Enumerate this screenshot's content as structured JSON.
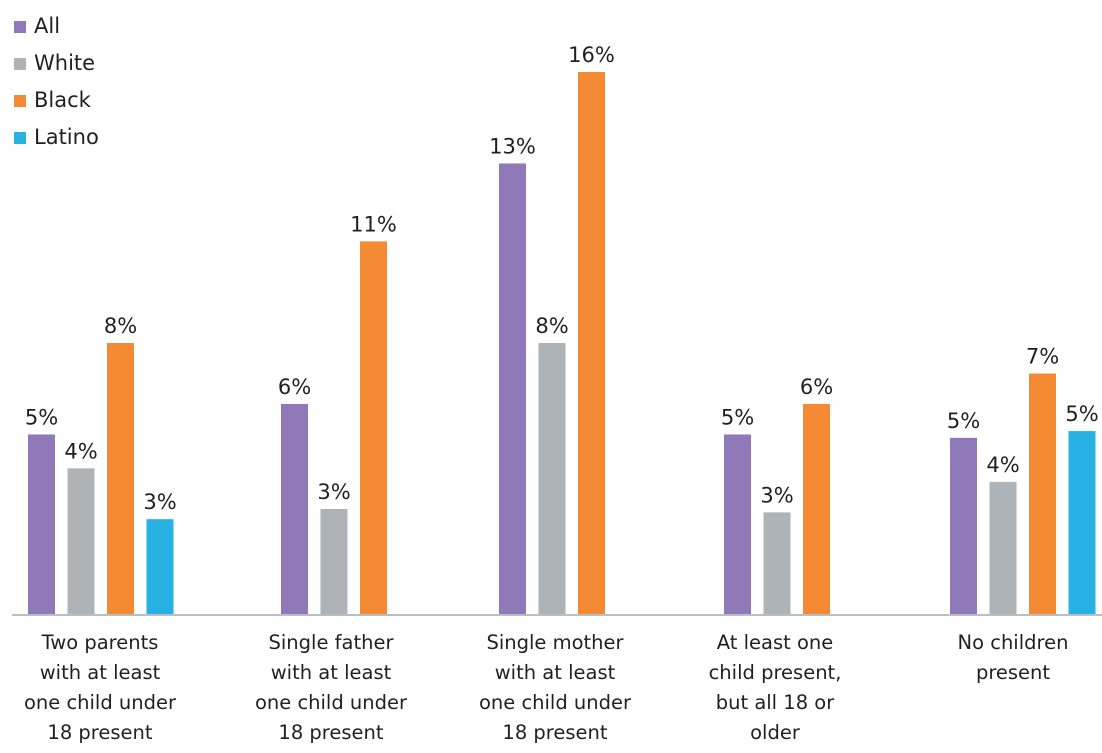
{
  "chart_data": {
    "type": "bar",
    "categories": [
      [
        "Two parents",
        "with at least",
        "one child under",
        "18 present"
      ],
      [
        "Single father",
        "with at least",
        "one child under",
        "18 present"
      ],
      [
        "Single mother",
        "with at least",
        "one child under",
        "18 present"
      ],
      [
        "At least one",
        "child present,",
        "but all 18 or",
        "older"
      ],
      [
        "No children",
        "present"
      ]
    ],
    "series": [
      {
        "name": "All",
        "color": "#9079b8",
        "values": [
          5.3,
          6.2,
          13.3,
          5.3,
          5.2
        ]
      },
      {
        "name": "White",
        "color": "#aeb3b7",
        "values": [
          4.3,
          3.1,
          8.0,
          3.0,
          3.9
        ]
      },
      {
        "name": "Black",
        "color": "#f48b34",
        "values": [
          8.0,
          11.0,
          16.0,
          6.2,
          7.1
        ]
      },
      {
        "name": "Latino",
        "color": "#28b2e4",
        "values": [
          2.8,
          null,
          null,
          null,
          5.4
        ]
      }
    ],
    "data_labels": [
      [
        "5%",
        "4%",
        "8%",
        "3%"
      ],
      [
        "6%",
        "3%",
        "11%",
        null
      ],
      [
        "13%",
        "8%",
        "16%",
        null
      ],
      [
        "5%",
        "3%",
        "6%",
        null
      ],
      [
        "5%",
        "4%",
        "7%",
        "5%"
      ]
    ],
    "ylim": [
      0,
      16
    ],
    "grid": false,
    "legend_position": "top-left",
    "baseline_color": "#b9c0c5"
  }
}
